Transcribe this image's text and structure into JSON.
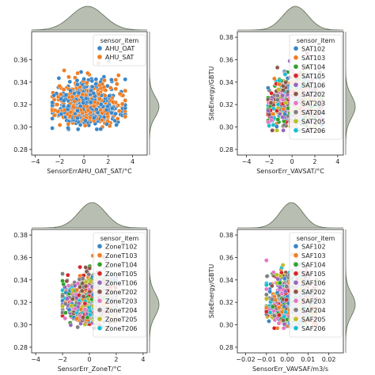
{
  "colors": {
    "AHU_OAT": "#3b86c6",
    "AHU_SAT": "#ef7d22",
    "c102": "#3b86c6",
    "c103": "#ef7d22",
    "c104": "#2ea02c",
    "c105": "#d62728",
    "c106": "#9467bd",
    "c202": "#8c564b",
    "c203": "#e377c2",
    "c204": "#7f7f7f",
    "c205": "#bcbd22",
    "c206": "#17becf",
    "marginal_fill": "#7d8a73",
    "marginal_line": "#5d6b54"
  },
  "chart_data": [
    {
      "type": "scatter",
      "xlabel": "SensorErrAHU_OAT_SAT/°C",
      "ylabel": "",
      "xlim": [
        -4.3,
        5.2
      ],
      "ylim": [
        0.275,
        0.385
      ],
      "xticks": [
        -4,
        -2,
        0,
        2,
        4
      ],
      "yticks": [
        0.28,
        0.3,
        0.32,
        0.34,
        0.36
      ],
      "ytick_labels": [
        "0.28",
        "0.30",
        "0.32",
        "0.34",
        "0.36"
      ],
      "legend_title": "sensor_item",
      "legend_position": "upper-right",
      "series": [
        {
          "name": "AHU_OAT",
          "color_key": "AHU_OAT"
        },
        {
          "name": "AHU_SAT",
          "color_key": "AHU_SAT"
        }
      ],
      "cloud": {
        "x_center": 0.3,
        "x_spread": 1.35,
        "x_min": -2.6,
        "x_max": 3.4,
        "y_center": 0.318,
        "y_spread": 0.009,
        "y_min": 0.298,
        "y_max": 0.365
      }
    },
    {
      "type": "scatter",
      "xlabel": "SensorErr_VAVSAT/°C",
      "ylabel": "SiteEnergy/GBTU",
      "xlim": [
        -4.8,
        4.5
      ],
      "ylim": [
        0.275,
        0.385
      ],
      "xticks": [
        -4,
        -2,
        0,
        2,
        4
      ],
      "yticks": [
        0.28,
        0.3,
        0.32,
        0.34,
        0.36,
        0.38
      ],
      "ytick_labels": [
        "0.28",
        "0.30",
        "0.32",
        "0.34",
        "0.36",
        "0.38"
      ],
      "legend_title": "sensor_item",
      "legend_position": "upper-right",
      "series": [
        {
          "name": "SAT102",
          "color_key": "c102"
        },
        {
          "name": "SAT103",
          "color_key": "c103"
        },
        {
          "name": "SAT104",
          "color_key": "c104"
        },
        {
          "name": "SAT105",
          "color_key": "c105"
        },
        {
          "name": "SAT106",
          "color_key": "c106"
        },
        {
          "name": "SAT202",
          "color_key": "c202"
        },
        {
          "name": "SAT203",
          "color_key": "c203"
        },
        {
          "name": "SAT204",
          "color_key": "c204"
        },
        {
          "name": "SAT205",
          "color_key": "c205"
        },
        {
          "name": "SAT206",
          "color_key": "c206"
        }
      ],
      "cloud": {
        "x_center": 0.3,
        "x_spread": 1.1,
        "x_min": -2.1,
        "x_max": 2.6,
        "y_center": 0.318,
        "y_spread": 0.01,
        "y_min": 0.297,
        "y_max": 0.372
      }
    },
    {
      "type": "scatter",
      "xlabel": "SensorErr_ZoneT/°C",
      "ylabel": "",
      "xlim": [
        -4.3,
        4.3
      ],
      "ylim": [
        0.275,
        0.385
      ],
      "xticks": [
        -4,
        -2,
        0,
        2,
        4
      ],
      "yticks": [
        0.28,
        0.3,
        0.32,
        0.34,
        0.36,
        0.38
      ],
      "ytick_labels": [
        "0.28",
        "0.30",
        "0.32",
        "0.34",
        "0.36",
        "0.38"
      ],
      "legend_title": "sensor_item",
      "legend_position": "upper-right",
      "series": [
        {
          "name": "ZoneT102",
          "color_key": "c102"
        },
        {
          "name": "ZoneT103",
          "color_key": "c103"
        },
        {
          "name": "ZoneT104",
          "color_key": "c104"
        },
        {
          "name": "ZoneT105",
          "color_key": "c105"
        },
        {
          "name": "ZoneT106",
          "color_key": "c106"
        },
        {
          "name": "ZoneT202",
          "color_key": "c202"
        },
        {
          "name": "ZoneT203",
          "color_key": "c203"
        },
        {
          "name": "ZoneT204",
          "color_key": "c204"
        },
        {
          "name": "ZoneT205",
          "color_key": "c205"
        },
        {
          "name": "ZoneT206",
          "color_key": "c206"
        }
      ],
      "cloud": {
        "x_center": 0.2,
        "x_spread": 1.0,
        "x_min": -2.0,
        "x_max": 2.0,
        "y_center": 0.318,
        "y_spread": 0.01,
        "y_min": 0.297,
        "y_max": 0.368
      }
    },
    {
      "type": "scatter",
      "xlabel": "SensorErr_VAVSAF/m3/s",
      "ylabel": "SiteEnergy/GBTU",
      "xlim": [
        -0.024,
        0.027
      ],
      "ylim": [
        0.275,
        0.385
      ],
      "xticks": [
        -0.02,
        -0.01,
        0.0,
        0.01,
        0.02
      ],
      "xtick_labels": [
        "−0.02",
        "−0.01",
        "0.00",
        "0.01",
        "0.02"
      ],
      "yticks": [
        0.28,
        0.3,
        0.32,
        0.34,
        0.36,
        0.38
      ],
      "ytick_labels": [
        "0.28",
        "0.30",
        "0.32",
        "0.34",
        "0.36",
        "0.38"
      ],
      "legend_title": "sensor_item",
      "legend_position": "upper-right",
      "series": [
        {
          "name": "SAF102",
          "color_key": "c102"
        },
        {
          "name": "SAF103",
          "color_key": "c103"
        },
        {
          "name": "SAF104",
          "color_key": "c104"
        },
        {
          "name": "SAF105",
          "color_key": "c105"
        },
        {
          "name": "SAF106",
          "color_key": "c106"
        },
        {
          "name": "SAF202",
          "color_key": "c202"
        },
        {
          "name": "SAF203",
          "color_key": "c203"
        },
        {
          "name": "SAF204",
          "color_key": "c204"
        },
        {
          "name": "SAF205",
          "color_key": "c205"
        },
        {
          "name": "SAF206",
          "color_key": "c206"
        }
      ],
      "cloud": {
        "x_center": 0.002,
        "x_spread": 0.0055,
        "x_min": -0.01,
        "x_max": 0.014,
        "y_center": 0.318,
        "y_spread": 0.01,
        "y_min": 0.297,
        "y_max": 0.372
      }
    }
  ]
}
